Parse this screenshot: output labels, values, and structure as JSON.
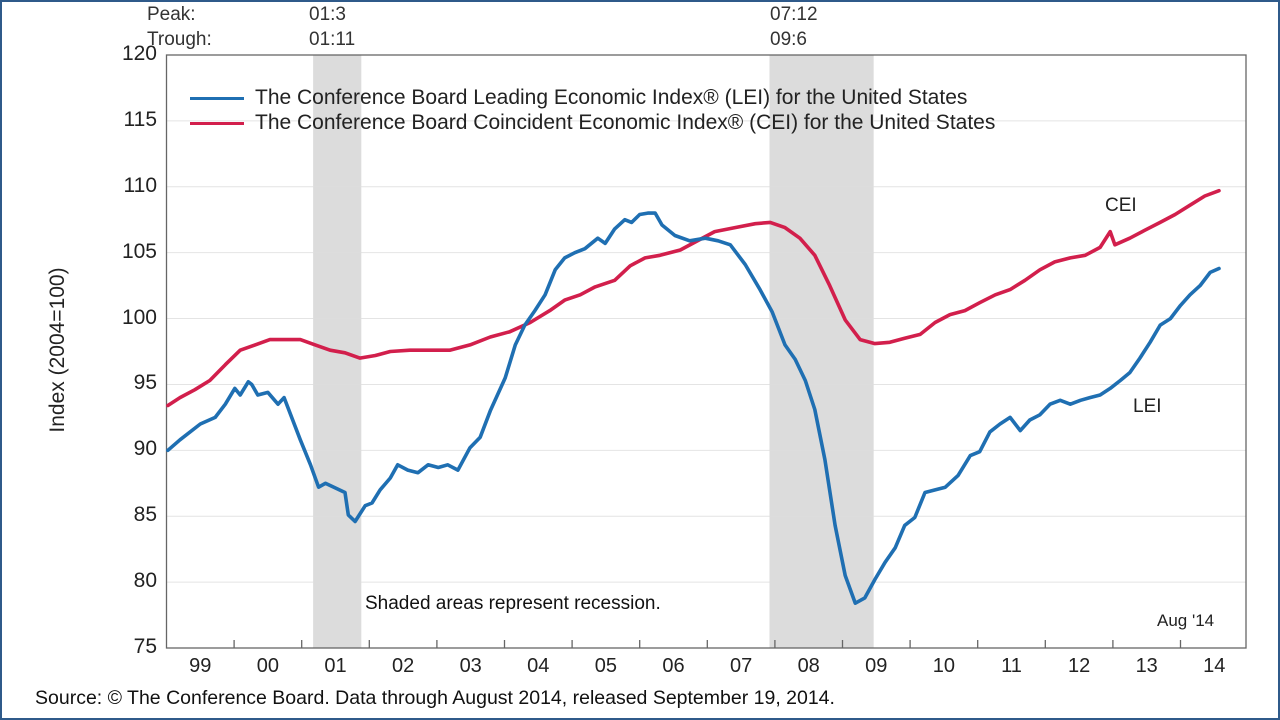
{
  "header": {
    "peak_label": "Peak:",
    "trough_label": "Trough:",
    "recessions": [
      {
        "peak": "01:3",
        "trough": "01:11"
      },
      {
        "peak": "07:12",
        "trough": "09:6"
      }
    ]
  },
  "source": "Source: © The Conference Board. Data through August 2014, released September 19, 2014.",
  "colors": {
    "lei": "#1f6fb2",
    "cei": "#d21f4c",
    "shade": "#dcdcdc",
    "border": "#2f5a8a"
  },
  "chart_data": {
    "type": "line",
    "ylabel": "Index (2004=100)",
    "xlabel": "",
    "ylim": [
      75,
      120
    ],
    "xlim": [
      1999.0,
      2014.95
    ],
    "yticks": [
      "75",
      "80",
      "85",
      "90",
      "95",
      "100",
      "105",
      "110",
      "115",
      "120"
    ],
    "xticks": [
      "99",
      "00",
      "01",
      "02",
      "03",
      "04",
      "05",
      "06",
      "07",
      "08",
      "09",
      "10",
      "11",
      "12",
      "13",
      "14"
    ],
    "grid": true,
    "legend_position": "top-left",
    "legend": [
      "The Conference Board Leading Economic Index® (LEI) for the United States",
      "The Conference Board Coincident Economic Index® (CEI) for the United States"
    ],
    "annotations": {
      "cei_label": "CEI",
      "lei_label": "LEI",
      "shading_note": "Shaded areas represent recession.",
      "data_through": "Aug '14"
    },
    "recession_shading": [
      [
        2001.17,
        2001.88
      ],
      [
        2007.92,
        2009.46
      ]
    ],
    "series": [
      {
        "name": "LEI",
        "points": [
          [
            1999.02,
            90.0
          ],
          [
            1999.2,
            90.8
          ],
          [
            1999.5,
            92.0
          ],
          [
            1999.72,
            92.5
          ],
          [
            1999.87,
            93.5
          ],
          [
            2000.01,
            94.7
          ],
          [
            2000.09,
            94.2
          ],
          [
            2000.21,
            95.2
          ],
          [
            2000.26,
            95.0
          ],
          [
            2000.35,
            94.2
          ],
          [
            2000.5,
            94.4
          ],
          [
            2000.65,
            93.5
          ],
          [
            2000.74,
            94.0
          ],
          [
            2000.98,
            90.8
          ],
          [
            2001.13,
            88.9
          ],
          [
            2001.25,
            87.2
          ],
          [
            2001.35,
            87.5
          ],
          [
            2001.64,
            86.8
          ],
          [
            2001.69,
            85.1
          ],
          [
            2001.79,
            84.6
          ],
          [
            2001.94,
            85.8
          ],
          [
            2002.04,
            86.0
          ],
          [
            2002.16,
            87.0
          ],
          [
            2002.31,
            87.9
          ],
          [
            2002.42,
            88.9
          ],
          [
            2002.57,
            88.5
          ],
          [
            2002.72,
            88.3
          ],
          [
            2002.87,
            88.9
          ],
          [
            2003.02,
            88.7
          ],
          [
            2003.16,
            88.9
          ],
          [
            2003.31,
            88.5
          ],
          [
            2003.49,
            90.2
          ],
          [
            2003.64,
            91.0
          ],
          [
            2003.79,
            93.0
          ],
          [
            2004.01,
            95.5
          ],
          [
            2004.16,
            98.0
          ],
          [
            2004.3,
            99.5
          ],
          [
            2004.45,
            100.6
          ],
          [
            2004.6,
            101.8
          ],
          [
            2004.75,
            103.7
          ],
          [
            2004.89,
            104.6
          ],
          [
            2005.04,
            105.0
          ],
          [
            2005.19,
            105.3
          ],
          [
            2005.38,
            106.1
          ],
          [
            2005.49,
            105.7
          ],
          [
            2005.63,
            106.8
          ],
          [
            2005.78,
            107.5
          ],
          [
            2005.88,
            107.3
          ],
          [
            2006.0,
            107.9
          ],
          [
            2006.12,
            108.0
          ],
          [
            2006.23,
            108.0
          ],
          [
            2006.33,
            107.1
          ],
          [
            2006.52,
            106.3
          ],
          [
            2006.74,
            105.9
          ],
          [
            2006.97,
            106.1
          ],
          [
            2007.16,
            105.9
          ],
          [
            2007.34,
            105.6
          ],
          [
            2007.56,
            104.1
          ],
          [
            2007.78,
            102.2
          ],
          [
            2007.96,
            100.5
          ],
          [
            2008.15,
            98.0
          ],
          [
            2008.3,
            96.9
          ],
          [
            2008.45,
            95.3
          ],
          [
            2008.59,
            93.1
          ],
          [
            2008.74,
            89.3
          ],
          [
            2008.89,
            84.3
          ],
          [
            2009.04,
            80.5
          ],
          [
            2009.19,
            78.4
          ],
          [
            2009.33,
            78.8
          ],
          [
            2009.48,
            80.2
          ],
          [
            2009.63,
            81.5
          ],
          [
            2009.78,
            82.6
          ],
          [
            2009.92,
            84.3
          ],
          [
            2010.07,
            84.9
          ],
          [
            2010.22,
            86.8
          ],
          [
            2010.37,
            87.0
          ],
          [
            2010.52,
            87.2
          ],
          [
            2010.71,
            88.1
          ],
          [
            2010.89,
            89.6
          ],
          [
            2011.03,
            89.9
          ],
          [
            2011.18,
            91.4
          ],
          [
            2011.33,
            92.0
          ],
          [
            2011.48,
            92.5
          ],
          [
            2011.63,
            91.5
          ],
          [
            2011.77,
            92.3
          ],
          [
            2011.92,
            92.7
          ],
          [
            2012.07,
            93.5
          ],
          [
            2012.22,
            93.8
          ],
          [
            2012.37,
            93.5
          ],
          [
            2012.52,
            93.8
          ],
          [
            2012.66,
            94.0
          ],
          [
            2012.81,
            94.2
          ],
          [
            2012.96,
            94.7
          ],
          [
            2013.11,
            95.3
          ],
          [
            2013.25,
            95.9
          ],
          [
            2013.4,
            97.0
          ],
          [
            2013.55,
            98.2
          ],
          [
            2013.7,
            99.5
          ],
          [
            2013.85,
            100.0
          ],
          [
            2014.0,
            101.0
          ],
          [
            2014.14,
            101.8
          ],
          [
            2014.29,
            102.5
          ],
          [
            2014.44,
            103.5
          ],
          [
            2014.57,
            103.8
          ]
        ]
      },
      {
        "name": "CEI",
        "points": [
          [
            1999.02,
            93.4
          ],
          [
            1999.2,
            94.0
          ],
          [
            1999.42,
            94.6
          ],
          [
            1999.64,
            95.3
          ],
          [
            1999.87,
            96.5
          ],
          [
            2000.09,
            97.6
          ],
          [
            2000.31,
            98.0
          ],
          [
            2000.53,
            98.4
          ],
          [
            2000.75,
            98.4
          ],
          [
            2000.98,
            98.4
          ],
          [
            2001.2,
            98.0
          ],
          [
            2001.42,
            97.6
          ],
          [
            2001.64,
            97.4
          ],
          [
            2001.86,
            97.0
          ],
          [
            2002.09,
            97.2
          ],
          [
            2002.31,
            97.5
          ],
          [
            2002.6,
            97.6
          ],
          [
            2002.9,
            97.6
          ],
          [
            2003.19,
            97.6
          ],
          [
            2003.49,
            98.0
          ],
          [
            2003.79,
            98.6
          ],
          [
            2004.08,
            99.0
          ],
          [
            2004.38,
            99.7
          ],
          [
            2004.67,
            100.6
          ],
          [
            2004.89,
            101.4
          ],
          [
            2005.12,
            101.8
          ],
          [
            2005.34,
            102.4
          ],
          [
            2005.63,
            102.9
          ],
          [
            2005.86,
            104.0
          ],
          [
            2006.08,
            104.6
          ],
          [
            2006.3,
            104.8
          ],
          [
            2006.6,
            105.2
          ],
          [
            2006.89,
            106.0
          ],
          [
            2007.11,
            106.6
          ],
          [
            2007.41,
            106.9
          ],
          [
            2007.71,
            107.2
          ],
          [
            2007.93,
            107.3
          ],
          [
            2008.15,
            106.9
          ],
          [
            2008.37,
            106.1
          ],
          [
            2008.59,
            104.8
          ],
          [
            2008.81,
            102.5
          ],
          [
            2009.04,
            99.9
          ],
          [
            2009.26,
            98.4
          ],
          [
            2009.48,
            98.1
          ],
          [
            2009.7,
            98.2
          ],
          [
            2009.92,
            98.5
          ],
          [
            2010.15,
            98.8
          ],
          [
            2010.37,
            99.7
          ],
          [
            2010.59,
            100.3
          ],
          [
            2010.81,
            100.6
          ],
          [
            2011.03,
            101.2
          ],
          [
            2011.26,
            101.8
          ],
          [
            2011.48,
            102.2
          ],
          [
            2011.7,
            102.9
          ],
          [
            2011.92,
            103.7
          ],
          [
            2012.14,
            104.3
          ],
          [
            2012.37,
            104.6
          ],
          [
            2012.59,
            104.8
          ],
          [
            2012.81,
            105.4
          ],
          [
            2012.96,
            106.6
          ],
          [
            2013.03,
            105.6
          ],
          [
            2013.25,
            106.1
          ],
          [
            2013.47,
            106.7
          ],
          [
            2013.7,
            107.3
          ],
          [
            2013.92,
            107.9
          ],
          [
            2014.14,
            108.6
          ],
          [
            2014.36,
            109.3
          ],
          [
            2014.57,
            109.7
          ]
        ]
      }
    ]
  }
}
